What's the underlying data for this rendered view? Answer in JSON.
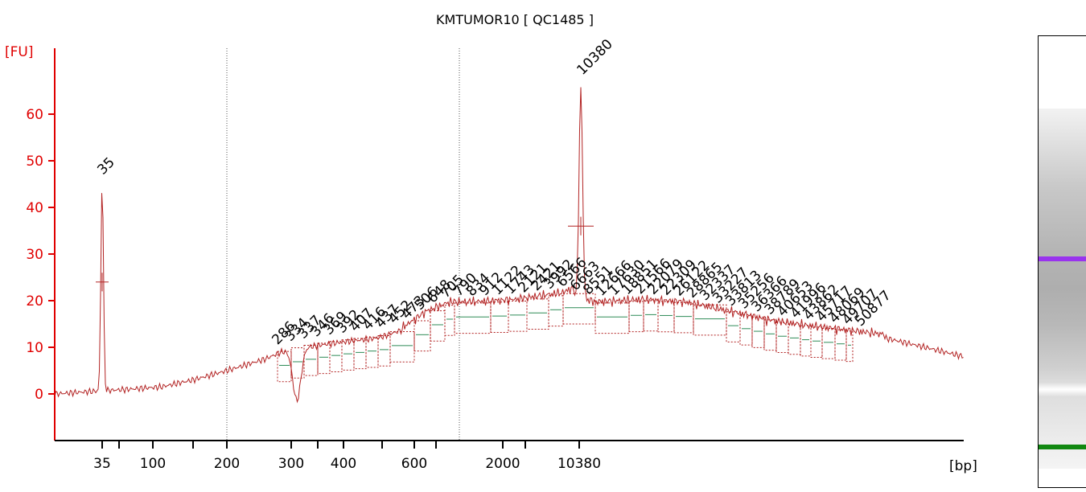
{
  "chart_data": {
    "type": "line",
    "title": "KMTUMOR10  [ QC1485 ]",
    "ylabel": "[FU]",
    "xlabel": "[bp]",
    "ylim": [
      -10,
      70
    ],
    "y_ticks": [
      0,
      10,
      20,
      30,
      40,
      50,
      60
    ],
    "x_tick_labels": [
      "35",
      "100",
      "200",
      "300",
      "400",
      "600",
      "2000",
      "10380"
    ],
    "marker_labels": [
      "35",
      "10380"
    ],
    "marker_colors": {
      "lower": "#118811",
      "upper": "#9933ee"
    },
    "trace_color": "#b22222",
    "peak_labels": [
      "286",
      "334",
      "337",
      "346",
      "369",
      "392",
      "407",
      "416",
      "437",
      "452",
      "473",
      "506",
      "648",
      "705",
      "790",
      "834",
      "912",
      "1122",
      "1743",
      "2121",
      "2421",
      "3992",
      "6566",
      "6663",
      "8551",
      "12666",
      "17630",
      "18851",
      "21566",
      "22079",
      "22309",
      "26122",
      "28865",
      "32337",
      "33227",
      "33813",
      "35256",
      "36366",
      "38789",
      "40653",
      "41996",
      "43862",
      "45717",
      "48069",
      "49707",
      "50877"
    ],
    "gel": {
      "upper_band_color": "#9933ee",
      "lower_band_color": "#118811"
    }
  }
}
